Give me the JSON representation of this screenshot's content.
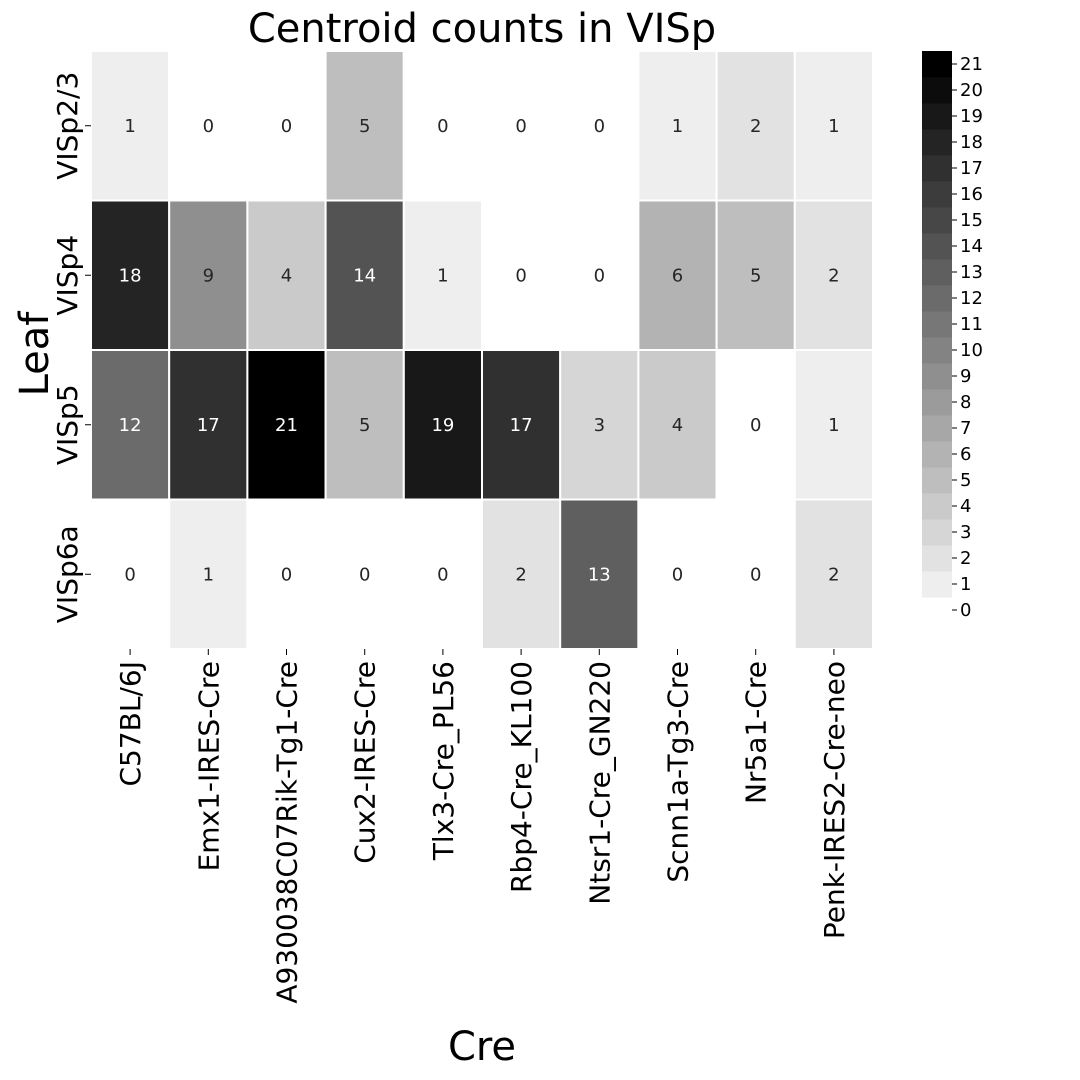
{
  "chart_data": {
    "type": "heatmap",
    "title": "Centroid counts in VISp",
    "xlabel": "Cre",
    "ylabel": "Leaf",
    "x_categories": [
      "C57BL/6J",
      "Emx1-IRES-Cre",
      "A930038C07Rik-Tg1-Cre",
      "Cux2-IRES-Cre",
      "Tlx3-Cre_PL56",
      "Rbp4-Cre_KL100",
      "Ntsr1-Cre_GN220",
      "Scnn1a-Tg3-Cre",
      "Nr5a1-Cre",
      "Penk-IRES2-Cre-neo"
    ],
    "y_categories": [
      "VISp2/3",
      "VISp4",
      "VISp5",
      "VISp6a"
    ],
    "values": [
      [
        1,
        0,
        0,
        5,
        0,
        0,
        0,
        1,
        2,
        1
      ],
      [
        18,
        9,
        4,
        14,
        1,
        0,
        0,
        6,
        5,
        2
      ],
      [
        12,
        17,
        21,
        5,
        19,
        17,
        3,
        4,
        0,
        1
      ],
      [
        0,
        1,
        0,
        0,
        0,
        2,
        13,
        0,
        0,
        2
      ]
    ],
    "colorbar": {
      "min": 0,
      "max": 21,
      "ticks": [
        0,
        1,
        2,
        3,
        4,
        5,
        6,
        7,
        8,
        9,
        10,
        11,
        12,
        13,
        14,
        15,
        16,
        17,
        18,
        19,
        20,
        21
      ],
      "colormap": "discrete grayscale, white to black"
    },
    "colors": {
      "low": "#ffffff",
      "high": "#000000",
      "gridline": "#ffffff",
      "light_text": "#ffffff",
      "dark_text": "#262626"
    }
  }
}
